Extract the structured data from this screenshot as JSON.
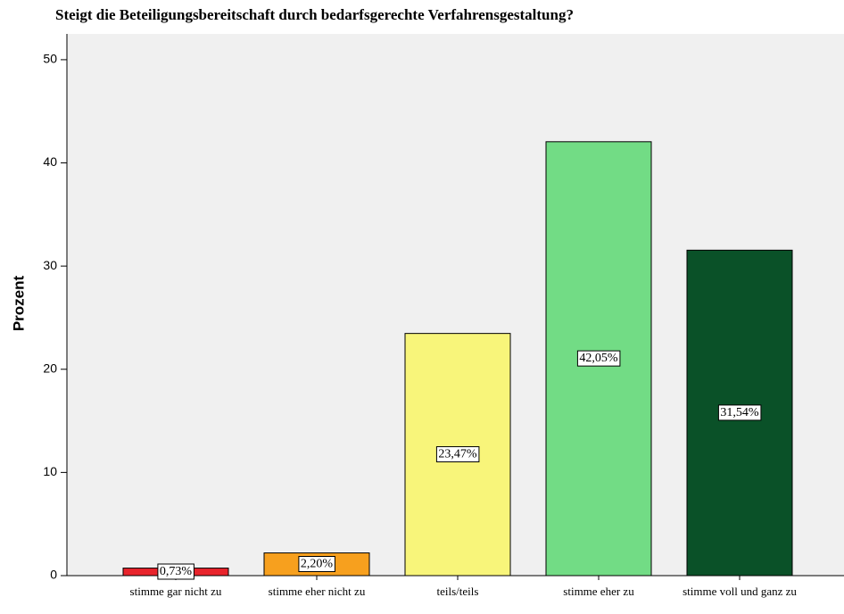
{
  "chart_data": {
    "type": "bar",
    "title": "Steigt die Beteiligungsbereitschaft durch bedarfsgerechte Verfahrensgestaltung?",
    "y_label": "Prozent",
    "categories": [
      "stimme gar nicht zu",
      "stimme eher nicht zu",
      "teils/teils",
      "stimme eher zu",
      "stimme voll und ganz zu"
    ],
    "values": [
      0.73,
      2.2,
      23.47,
      42.05,
      31.54
    ],
    "value_labels": [
      "0,73%",
      "2,20%",
      "23,47%",
      "42,05%",
      "31,54%"
    ],
    "colors": [
      "#e8242c",
      "#f7a01e",
      "#f8f57a",
      "#72dc85",
      "#0a5128"
    ],
    "ylim": [
      0,
      52.5
    ],
    "yticks": [
      0,
      10,
      20,
      30,
      40,
      50
    ]
  }
}
